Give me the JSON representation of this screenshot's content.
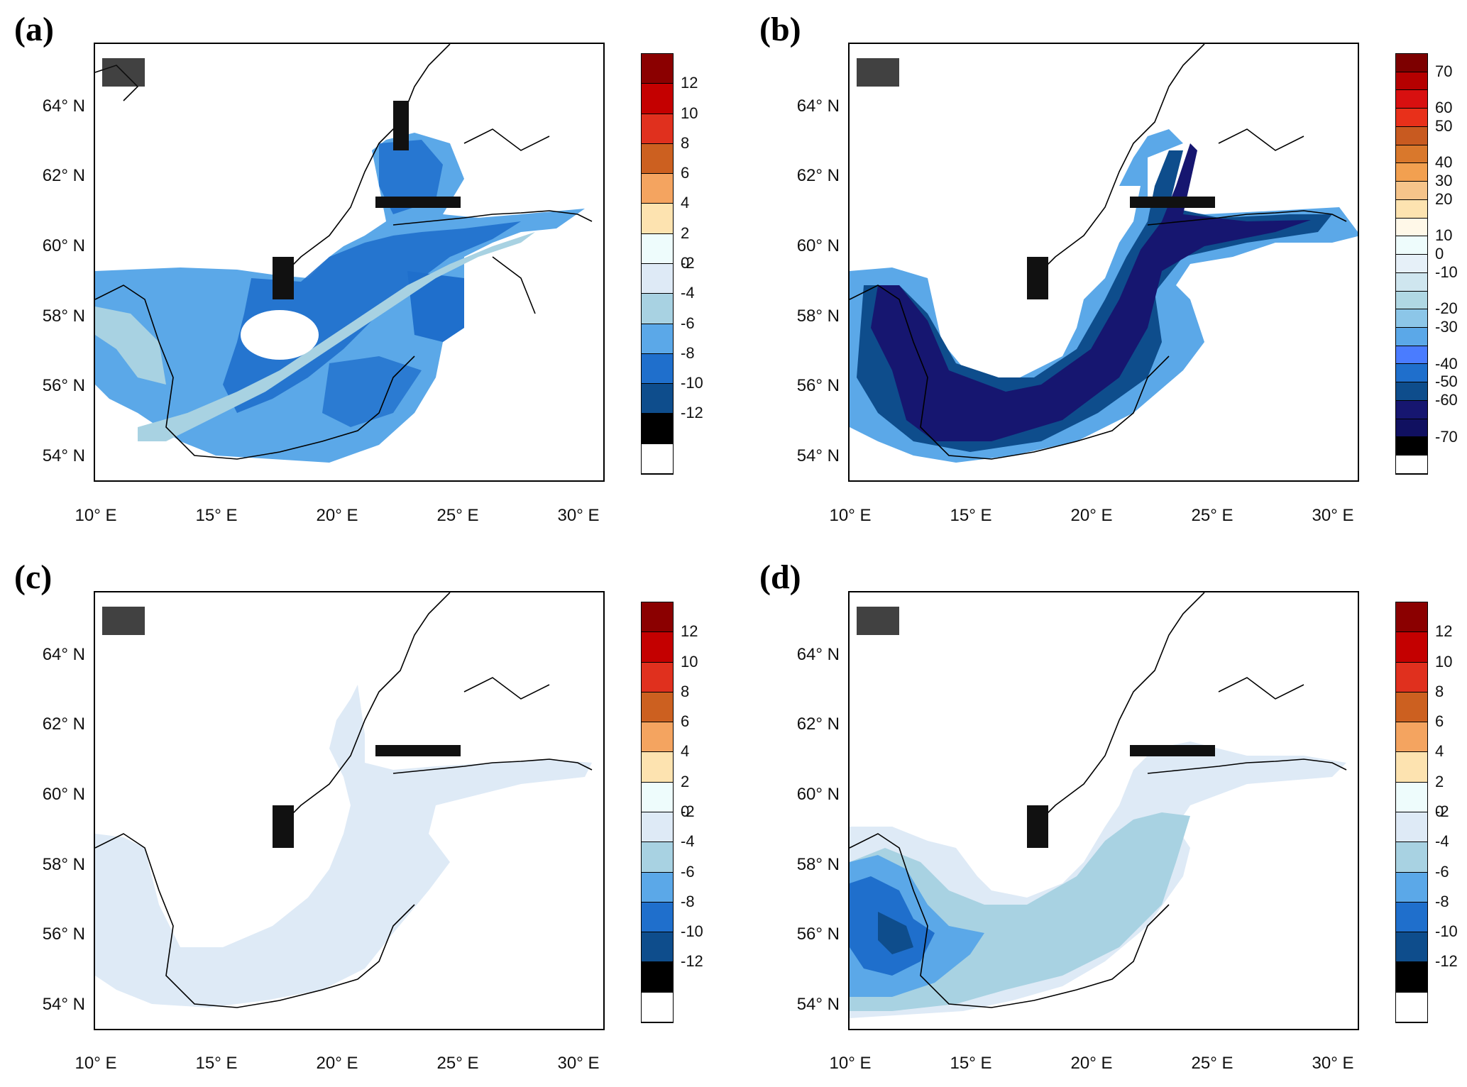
{
  "panels": [
    {
      "label": "(a)",
      "lat_ticks": [
        "64° N",
        "62° N",
        "60° N",
        "58° N",
        "56° N",
        "54° N"
      ],
      "lon_ticks": [
        "10° E",
        "15° E",
        "20° E",
        "25° E",
        "30° E"
      ],
      "colorbar": {
        "labels": [
          "12",
          "10",
          "8",
          "6",
          "4",
          "2",
          "0",
          "-2",
          "-4",
          "-6",
          "-8",
          "-10",
          "-12"
        ],
        "colors": [
          "#8b0000",
          "#c40000",
          "#e0301e",
          "#cc6020",
          "#f4a460",
          "#fde3b0",
          "#eefcfc",
          "#deeaf6",
          "#a8d2e2",
          "#5ba8e8",
          "#1f6fcc",
          "#0e4d8c",
          "#000000",
          "#ffffff"
        ]
      }
    },
    {
      "label": "(b)",
      "lat_ticks": [
        "64° N",
        "62° N",
        "60° N",
        "58° N",
        "56° N",
        "54° N"
      ],
      "lon_ticks": [
        "10° E",
        "15° E",
        "20° E",
        "25° E",
        "30° E"
      ],
      "colorbar": {
        "labels": [
          "70",
          "60",
          "50",
          "40",
          "30",
          "20",
          "10",
          "0",
          "-10",
          "-20",
          "-30",
          "-40",
          "-50",
          "-60",
          "-70"
        ],
        "colors": [
          "#7d0000",
          "#b50000",
          "#d81010",
          "#e8301a",
          "#c85a20",
          "#d9782c",
          "#f2a050",
          "#f6c48a",
          "#fde3b0",
          "#fff8e8",
          "#eefcfc",
          "#e6f0f8",
          "#cfe6ef",
          "#b0d8e4",
          "#8cc6e8",
          "#5ba8e8",
          "#4a7cff",
          "#1f6fcc",
          "#0e4d8c",
          "#161670",
          "#101060",
          "#000000",
          "#ffffff"
        ]
      }
    },
    {
      "label": "(c)",
      "lat_ticks": [
        "64° N",
        "62° N",
        "60° N",
        "58° N",
        "56° N",
        "54° N"
      ],
      "lon_ticks": [
        "10° E",
        "15° E",
        "20° E",
        "25° E",
        "30° E"
      ],
      "colorbar": {
        "labels": [
          "12",
          "10",
          "8",
          "6",
          "4",
          "2",
          "0",
          "-2",
          "-4",
          "-6",
          "-8",
          "-10",
          "-12"
        ],
        "colors": [
          "#8b0000",
          "#c40000",
          "#e0301e",
          "#cc6020",
          "#f4a460",
          "#fde3b0",
          "#eefcfc",
          "#deeaf6",
          "#a8d2e2",
          "#5ba8e8",
          "#1f6fcc",
          "#0e4d8c",
          "#000000",
          "#ffffff"
        ]
      }
    },
    {
      "label": "(d)",
      "lat_ticks": [
        "64° N",
        "62° N",
        "60° N",
        "58° N",
        "56° N",
        "54° N"
      ],
      "lon_ticks": [
        "10° E",
        "15° E",
        "20° E",
        "25° E",
        "30° E"
      ],
      "colorbar": {
        "labels": [
          "12",
          "10",
          "8",
          "6",
          "4",
          "2",
          "0",
          "-2",
          "-4",
          "-6",
          "-8",
          "-10",
          "-12"
        ],
        "colors": [
          "#8b0000",
          "#c40000",
          "#e0301e",
          "#cc6020",
          "#f4a460",
          "#fde3b0",
          "#eefcfc",
          "#deeaf6",
          "#a8d2e2",
          "#5ba8e8",
          "#1f6fcc",
          "#0e4d8c",
          "#000000",
          "#ffffff"
        ]
      }
    }
  ]
}
